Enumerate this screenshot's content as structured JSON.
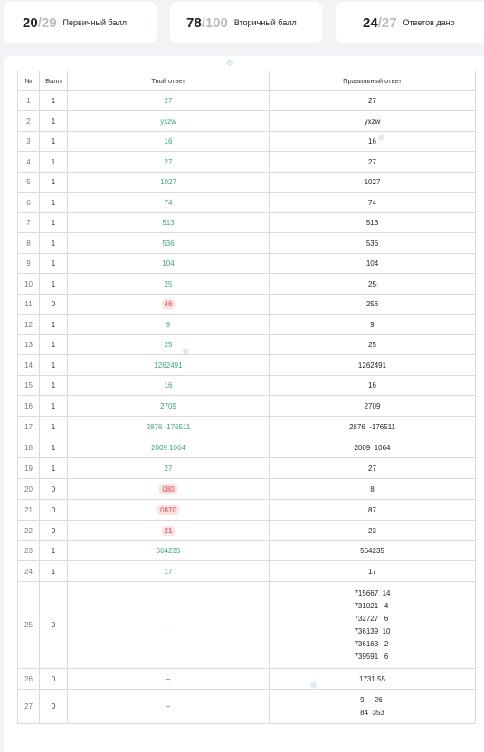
{
  "stats": [
    {
      "value": "20",
      "max": "/29",
      "label": "Первичный балл"
    },
    {
      "value": "78",
      "max": "/100",
      "label": "Вторичный балл"
    },
    {
      "value": "24",
      "max": "/27",
      "label": "Ответов дано"
    }
  ],
  "table": {
    "headers": [
      "№",
      "Балл",
      "Твой ответ",
      "Правильный ответ"
    ],
    "rows": [
      {
        "num": "1",
        "score": "1",
        "answer": "27",
        "status": "ok",
        "correct": "27"
      },
      {
        "num": "2",
        "score": "1",
        "answer": "yxzw",
        "status": "ok",
        "correct": "yxzw"
      },
      {
        "num": "3",
        "score": "1",
        "answer": "16",
        "status": "ok",
        "correct": "16"
      },
      {
        "num": "4",
        "score": "1",
        "answer": "27",
        "status": "ok",
        "correct": "27"
      },
      {
        "num": "5",
        "score": "1",
        "answer": "1027",
        "status": "ok",
        "correct": "1027"
      },
      {
        "num": "6",
        "score": "1",
        "answer": "74",
        "status": "ok",
        "correct": "74"
      },
      {
        "num": "7",
        "score": "1",
        "answer": "513",
        "status": "ok",
        "correct": "513"
      },
      {
        "num": "8",
        "score": "1",
        "answer": "536",
        "status": "ok",
        "correct": "536"
      },
      {
        "num": "9",
        "score": "1",
        "answer": "104",
        "status": "ok",
        "correct": "104"
      },
      {
        "num": "10",
        "score": "1",
        "answer": "25",
        "status": "ok",
        "correct": "25"
      },
      {
        "num": "11",
        "score": "0",
        "answer": "46",
        "status": "bad",
        "correct": "256"
      },
      {
        "num": "12",
        "score": "1",
        "answer": "9",
        "status": "ok",
        "correct": "9"
      },
      {
        "num": "13",
        "score": "1",
        "answer": "25",
        "status": "ok",
        "correct": "25"
      },
      {
        "num": "14",
        "score": "1",
        "answer": "1262491",
        "status": "ok",
        "correct": "1262491"
      },
      {
        "num": "15",
        "score": "1",
        "answer": "16",
        "status": "ok",
        "correct": "16"
      },
      {
        "num": "16",
        "score": "1",
        "answer": "2709",
        "status": "ok",
        "correct": "2709"
      },
      {
        "num": "17",
        "score": "1",
        "answer": "2876  -176511",
        "status": "ok",
        "correct": "2876  -176511"
      },
      {
        "num": "18",
        "score": "1",
        "answer": "2009  1064",
        "status": "ok",
        "correct": "2009  1064"
      },
      {
        "num": "19",
        "score": "1",
        "answer": "27",
        "status": "ok",
        "correct": "27"
      },
      {
        "num": "20",
        "score": "0",
        "answer": "080",
        "status": "bad",
        "correct": "8"
      },
      {
        "num": "21",
        "score": "0",
        "answer": "0870",
        "status": "bad",
        "correct": "87"
      },
      {
        "num": "22",
        "score": "0",
        "answer": "21",
        "status": "bad",
        "correct": "23"
      },
      {
        "num": "23",
        "score": "1",
        "answer": "564235",
        "status": "ok",
        "correct": "564235"
      },
      {
        "num": "24",
        "score": "1",
        "answer": "17",
        "status": "ok",
        "correct": "17"
      },
      {
        "num": "25",
        "score": "0",
        "answer": "–",
        "status": "none",
        "correct_lines": [
          "715667  14",
          "731021   4",
          "732727   6",
          "736139  10",
          "736163   2",
          "739591   6"
        ]
      },
      {
        "num": "26",
        "score": "0",
        "answer": "–",
        "status": "none",
        "correct": "1731 55"
      },
      {
        "num": "27",
        "score": "0",
        "answer": "–",
        "status": "none",
        "correct_lines": [
          "9     26",
          "84  353"
        ]
      }
    ]
  },
  "decorations": {
    "snowflake_icon": "snowflake-icon"
  }
}
